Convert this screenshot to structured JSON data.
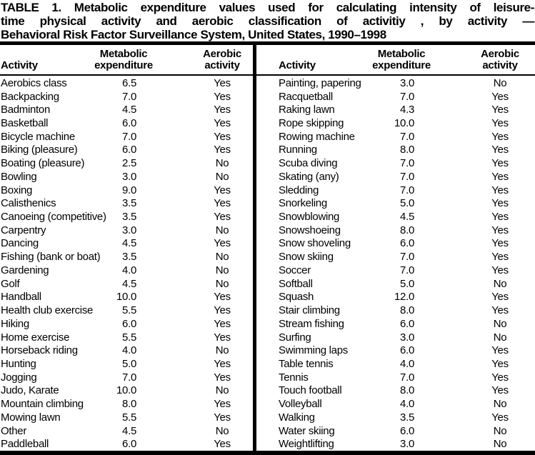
{
  "colors": {
    "ink": "#000000",
    "paper": "#ffffff"
  },
  "title": {
    "lines": [
      "TABLE 1. Metabolic expenditure values used for calculating intensity of leisure-",
      "time physical activity and aerobic classification of activitiy , by activity —",
      "Behavioral Risk Factor Surveillance System, United States, 1990–1998"
    ]
  },
  "columns": {
    "activity": "Activity",
    "metabolic_line1": "Metabolic",
    "metabolic_line2": "expenditure",
    "aerobic_line1": "Aerobic",
    "aerobic_line2": "activity"
  },
  "left_rows": [
    {
      "activity": "Aerobics class",
      "met": "6.5",
      "aerobic": "Yes"
    },
    {
      "activity": "Backpacking",
      "met": "7.0",
      "aerobic": "Yes"
    },
    {
      "activity": "Badminton",
      "met": "4.5",
      "aerobic": "Yes"
    },
    {
      "activity": "Basketball",
      "met": "6.0",
      "aerobic": "Yes"
    },
    {
      "activity": "Bicycle machine",
      "met": "7.0",
      "aerobic": "Yes"
    },
    {
      "activity": "Biking (pleasure)",
      "met": "6.0",
      "aerobic": "Yes"
    },
    {
      "activity": "Boating (pleasure)",
      "met": "2.5",
      "aerobic": "No"
    },
    {
      "activity": "Bowling",
      "met": "3.0",
      "aerobic": "No"
    },
    {
      "activity": "Boxing",
      "met": "9.0",
      "aerobic": "Yes"
    },
    {
      "activity": "Calisthenics",
      "met": "3.5",
      "aerobic": "Yes"
    },
    {
      "activity": "Canoeing (competitive)",
      "met": "3.5",
      "aerobic": "Yes"
    },
    {
      "activity": "Carpentry",
      "met": "3.0",
      "aerobic": "No"
    },
    {
      "activity": "Dancing",
      "met": "4.5",
      "aerobic": "Yes"
    },
    {
      "activity": "Fishing (bank or boat)",
      "met": "3.5",
      "aerobic": "No"
    },
    {
      "activity": "Gardening",
      "met": "4.0",
      "aerobic": "No"
    },
    {
      "activity": "Golf",
      "met": "4.5",
      "aerobic": "No"
    },
    {
      "activity": "Handball",
      "met": "10.0",
      "aerobic": "Yes"
    },
    {
      "activity": "Health club exercise",
      "met": "5.5",
      "aerobic": "Yes"
    },
    {
      "activity": "Hiking",
      "met": "6.0",
      "aerobic": "Yes"
    },
    {
      "activity": "Home exercise",
      "met": "5.5",
      "aerobic": "Yes"
    },
    {
      "activity": "Horseback riding",
      "met": "4.0",
      "aerobic": "No"
    },
    {
      "activity": "Hunting",
      "met": "5.0",
      "aerobic": "Yes"
    },
    {
      "activity": "Jogging",
      "met": "7.0",
      "aerobic": "Yes"
    },
    {
      "activity": "Judo, Karate",
      "met": "10.0",
      "aerobic": "No"
    },
    {
      "activity": "Mountain climbing",
      "met": "8.0",
      "aerobic": "Yes"
    },
    {
      "activity": "Mowing lawn",
      "met": "5.5",
      "aerobic": "Yes"
    },
    {
      "activity": "Other",
      "met": "4.5",
      "aerobic": "No"
    },
    {
      "activity": "Paddleball",
      "met": "6.0",
      "aerobic": "Yes"
    }
  ],
  "right_rows": [
    {
      "activity": "Painting, papering",
      "met": "3.0",
      "aerobic": "No"
    },
    {
      "activity": "Racquetball",
      "met": "7.0",
      "aerobic": "Yes"
    },
    {
      "activity": "Raking lawn",
      "met": "4.3",
      "aerobic": "Yes"
    },
    {
      "activity": "Rope skipping",
      "met": "10.0",
      "aerobic": "Yes"
    },
    {
      "activity": "Rowing machine",
      "met": "7.0",
      "aerobic": "Yes"
    },
    {
      "activity": "Running",
      "met": "8.0",
      "aerobic": "Yes"
    },
    {
      "activity": "Scuba diving",
      "met": "7.0",
      "aerobic": "Yes"
    },
    {
      "activity": "Skating (any)",
      "met": "7.0",
      "aerobic": "Yes"
    },
    {
      "activity": "Sledding",
      "met": "7.0",
      "aerobic": "Yes"
    },
    {
      "activity": "Snorkeling",
      "met": "5.0",
      "aerobic": "Yes"
    },
    {
      "activity": "Snowblowing",
      "met": "4.5",
      "aerobic": "Yes"
    },
    {
      "activity": "Snowshoeing",
      "met": "8.0",
      "aerobic": "Yes"
    },
    {
      "activity": "Snow shoveling",
      "met": "6.0",
      "aerobic": "Yes"
    },
    {
      "activity": "Snow skiing",
      "met": "7.0",
      "aerobic": "Yes"
    },
    {
      "activity": "Soccer",
      "met": "7.0",
      "aerobic": "Yes"
    },
    {
      "activity": "Softball",
      "met": "5.0",
      "aerobic": "No"
    },
    {
      "activity": "Squash",
      "met": "12.0",
      "aerobic": "Yes"
    },
    {
      "activity": "Stair climbing",
      "met": "8.0",
      "aerobic": "Yes"
    },
    {
      "activity": "Stream fishing",
      "met": "6.0",
      "aerobic": "No"
    },
    {
      "activity": "Surfing",
      "met": "3.0",
      "aerobic": "No"
    },
    {
      "activity": "Swimming laps",
      "met": "6.0",
      "aerobic": "Yes"
    },
    {
      "activity": "Table tennis",
      "met": "4.0",
      "aerobic": "Yes"
    },
    {
      "activity": "Tennis",
      "met": "7.0",
      "aerobic": "Yes"
    },
    {
      "activity": "Touch football",
      "met": "8.0",
      "aerobic": "Yes"
    },
    {
      "activity": "Volleyball",
      "met": "4.0",
      "aerobic": "No"
    },
    {
      "activity": "Walking",
      "met": "3.5",
      "aerobic": "Yes"
    },
    {
      "activity": "Water skiing",
      "met": "6.0",
      "aerobic": "No"
    },
    {
      "activity": "Weightlifting",
      "met": "3.0",
      "aerobic": "No"
    }
  ]
}
